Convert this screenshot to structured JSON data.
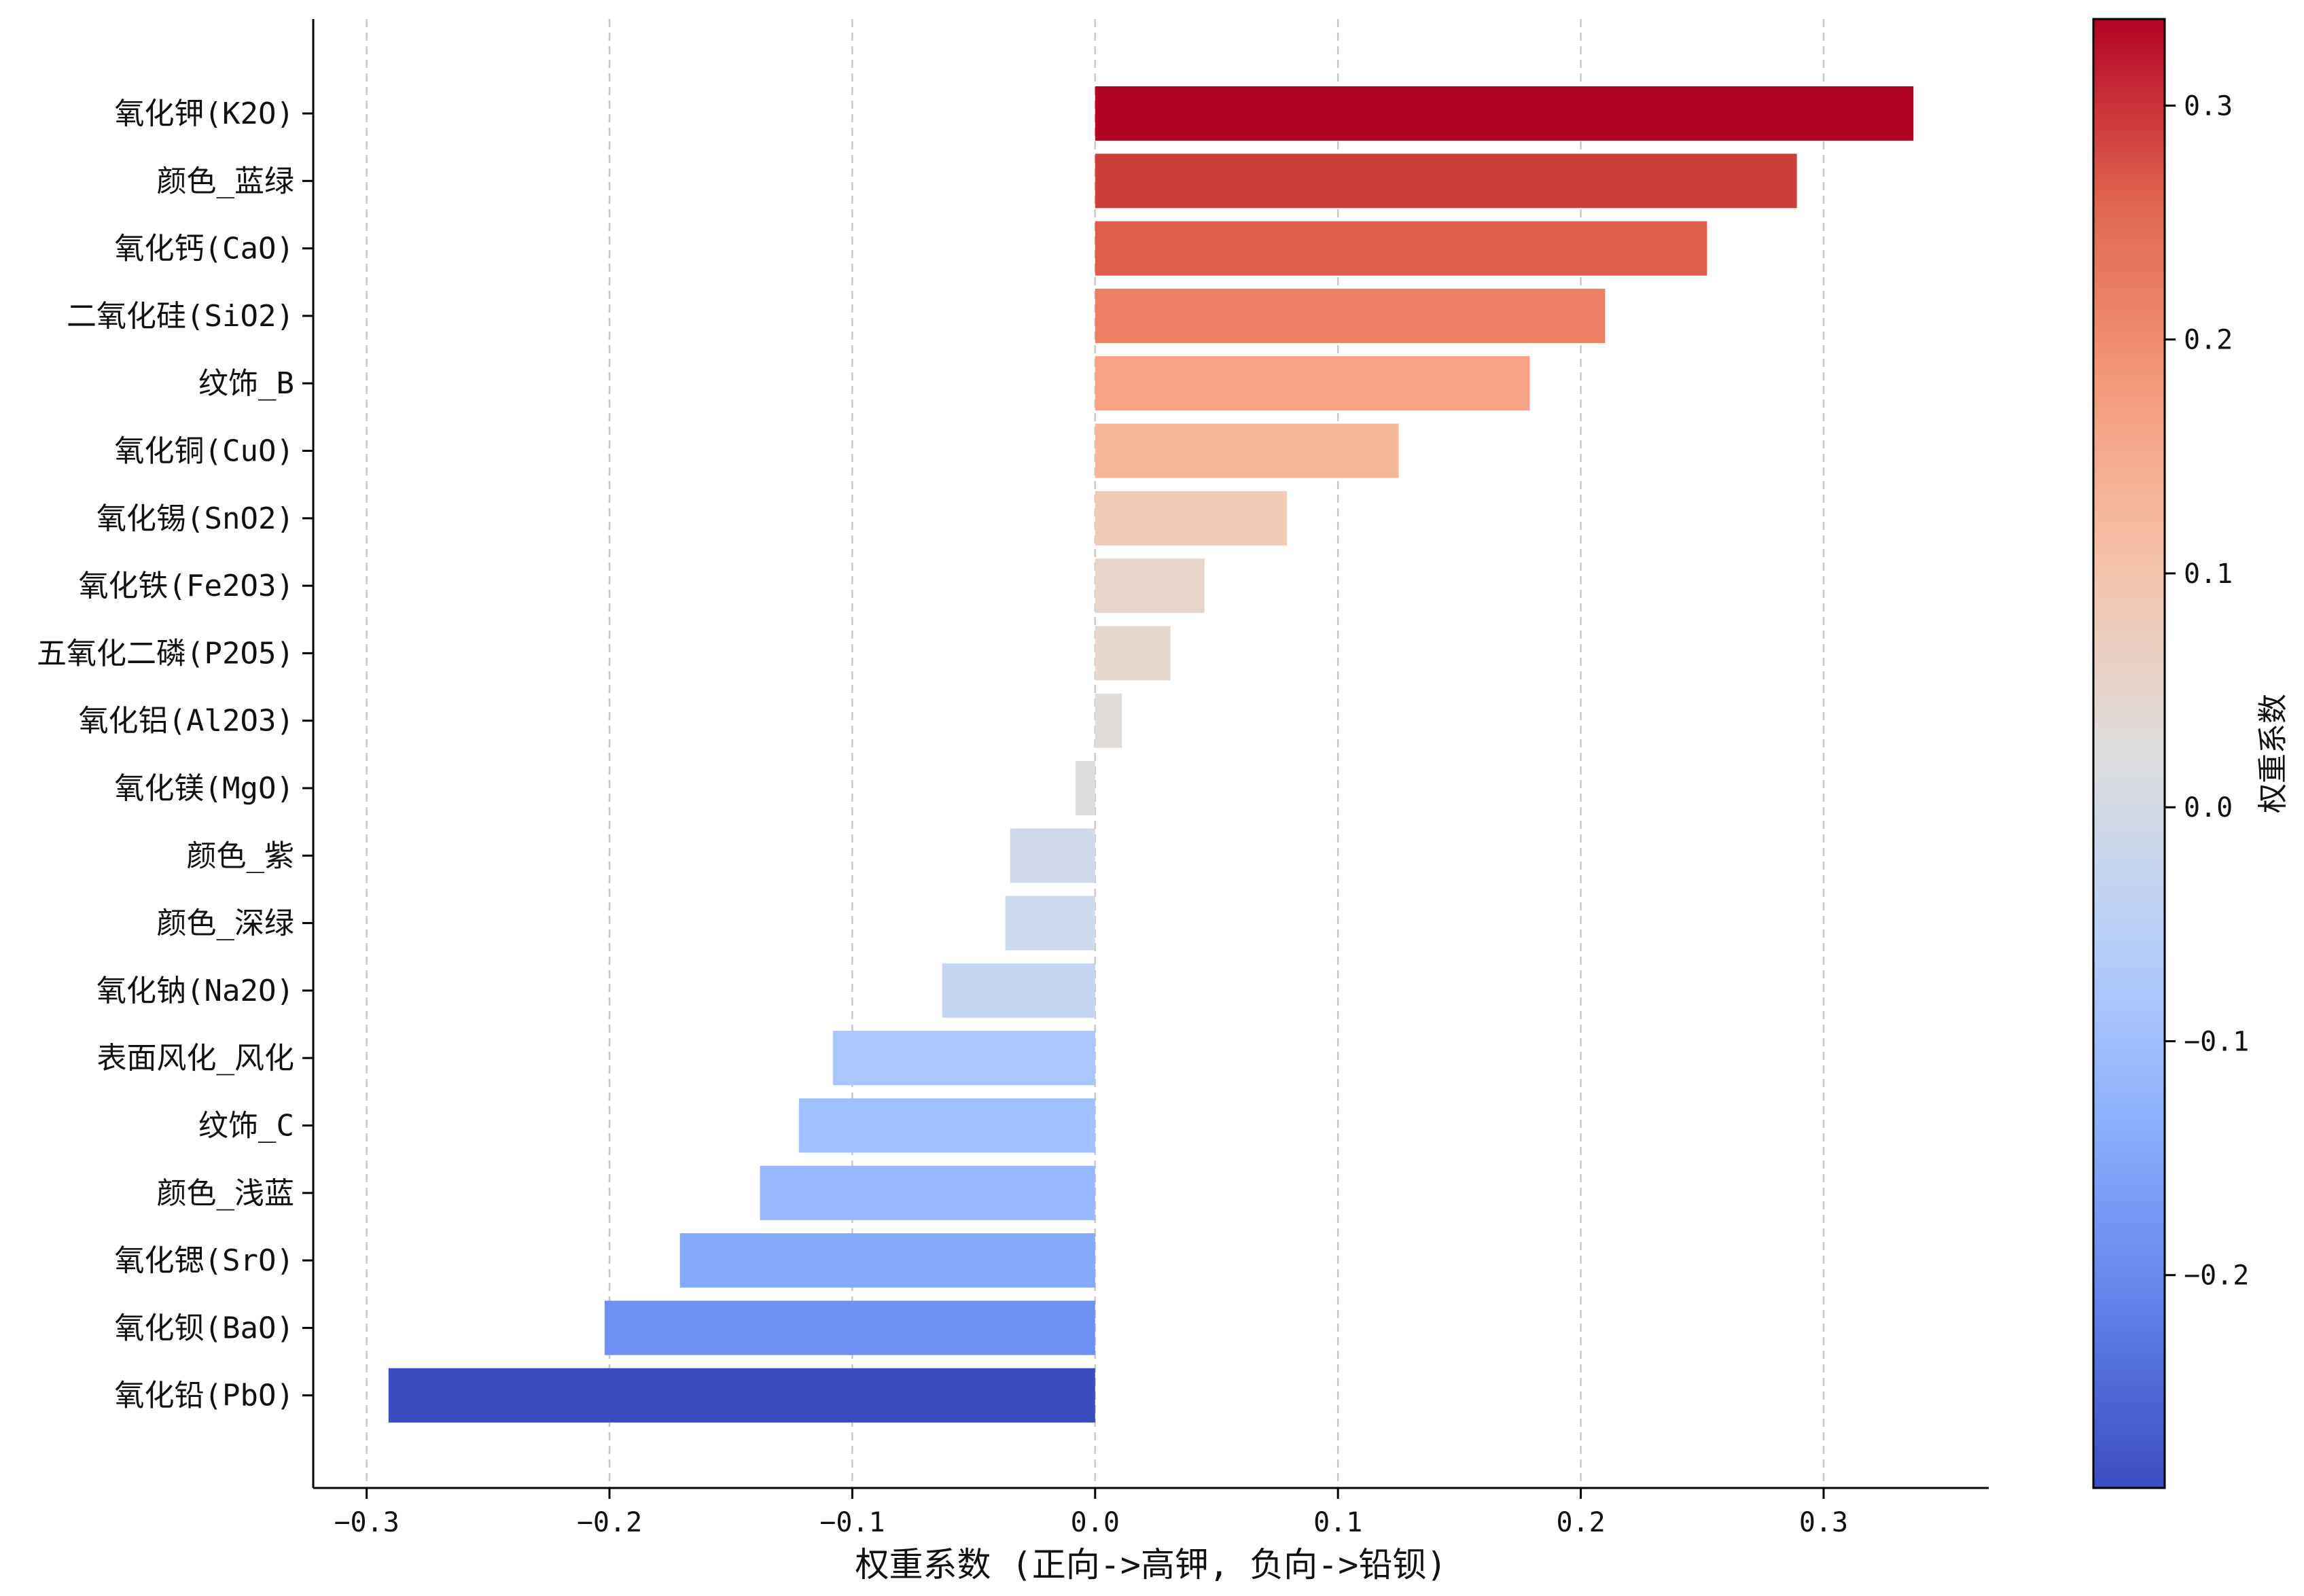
{
  "chart_data": {
    "type": "bar",
    "orientation": "horizontal",
    "title": "",
    "xlabel": "权重系数 (正向->高钾, 负向->铅钡)",
    "ylabel": "",
    "xlim": [
      -0.322,
      0.368
    ],
    "xticks": [
      -0.3,
      -0.2,
      -0.1,
      0.0,
      0.1,
      0.2,
      0.3
    ],
    "xtick_labels": [
      "−0.3",
      "−0.2",
      "−0.1",
      "0.0",
      "0.1",
      "0.2",
      "0.3"
    ],
    "grid": "vertical dashed",
    "colormap": "coolwarm",
    "categories": [
      "氧化钾(K2O)",
      "颜色_蓝绿",
      "氧化钙(CaO)",
      "二氧化硅(SiO2)",
      "纹饰_B",
      "氧化铜(CuO)",
      "氧化锡(SnO2)",
      "氧化铁(Fe2O3)",
      "五氧化二磷(P2O5)",
      "氧化铝(Al2O3)",
      "氧化镁(MgO)",
      "颜色_紫",
      "颜色_深绿",
      "氧化钠(Na2O)",
      "表面风化_风化",
      "纹饰_C",
      "颜色_浅蓝",
      "氧化锶(SrO)",
      "氧化钡(BaO)",
      "氧化铅(PbO)"
    ],
    "values": [
      0.337,
      0.289,
      0.252,
      0.21,
      0.179,
      0.125,
      0.079,
      0.045,
      0.031,
      0.011,
      -0.008,
      -0.035,
      -0.037,
      -0.063,
      -0.108,
      -0.122,
      -0.138,
      -0.171,
      -0.202,
      -0.291
    ],
    "colors": [
      "#b40426",
      "#cc403a",
      "#dd5f4b",
      "#ec7f63",
      "#f6a385",
      "#f5b79a",
      "#f2cbb7",
      "#e8d5c9",
      "#e5d6ce",
      "#dfdbd9",
      "#dcdddd",
      "#cfd9e9",
      "#ccd9ed",
      "#c5d6f2",
      "#a9c6fd",
      "#a1c0ff",
      "#97b8ff",
      "#86a9fc",
      "#6e90f2",
      "#3b4cc0"
    ],
    "colorbar": {
      "label": "权重系数",
      "range": [
        -0.291,
        0.337
      ],
      "ticks": [
        -0.2,
        -0.1,
        0.0,
        0.1,
        0.2,
        0.3
      ],
      "tick_labels": [
        "−0.2",
        "−0.1",
        "0.0",
        "0.1",
        "0.2",
        "0.3"
      ],
      "gradient": [
        "#3b4cc0",
        "#6282ea",
        "#8db0fe",
        "#b9d0f9",
        "#dddddd",
        "#f5c4ac",
        "#f49a7b",
        "#e0654f",
        "#b40426"
      ]
    }
  }
}
